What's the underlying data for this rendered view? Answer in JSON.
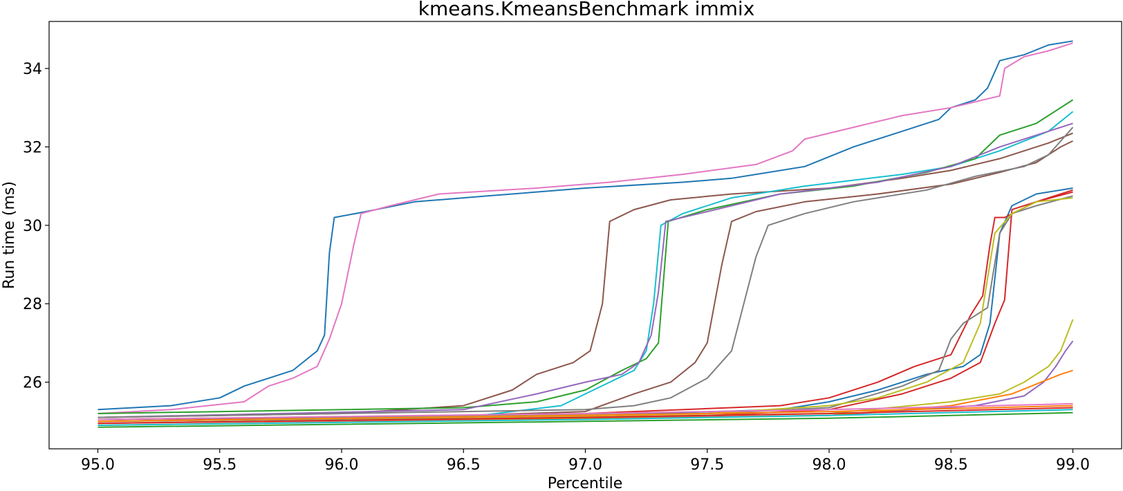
{
  "chart_data": {
    "type": "line",
    "title": "kmeans.KmeansBenchmark immix",
    "xlabel": "Percentile",
    "ylabel": "Run time (ms)",
    "xlim": [
      94.8,
      99.2
    ],
    "ylim": [
      24.3,
      35.2
    ],
    "xticks": [
      "95.0",
      "95.5",
      "96.0",
      "96.5",
      "97.0",
      "97.5",
      "98.0",
      "98.5",
      "99.0"
    ],
    "yticks": [
      "26",
      "28",
      "30",
      "32",
      "34"
    ],
    "grid": false,
    "legend": "none",
    "series": [
      {
        "color": "#1f77b4",
        "points": [
          [
            95.0,
            25.3
          ],
          [
            95.3,
            25.4
          ],
          [
            95.5,
            25.6
          ],
          [
            95.6,
            25.9
          ],
          [
            95.8,
            26.3
          ],
          [
            95.9,
            26.8
          ],
          [
            95.93,
            27.2
          ],
          [
            95.95,
            29.3
          ],
          [
            95.97,
            30.2
          ],
          [
            96.1,
            30.35
          ],
          [
            96.3,
            30.6
          ],
          [
            96.6,
            30.75
          ],
          [
            97.0,
            30.95
          ],
          [
            97.4,
            31.1
          ],
          [
            97.6,
            31.2
          ],
          [
            97.9,
            31.5
          ],
          [
            98.1,
            32.0
          ],
          [
            98.3,
            32.4
          ],
          [
            98.45,
            32.7
          ],
          [
            98.5,
            33.0
          ],
          [
            98.6,
            33.2
          ],
          [
            98.65,
            33.5
          ],
          [
            98.7,
            34.2
          ],
          [
            98.8,
            34.35
          ],
          [
            98.9,
            34.6
          ],
          [
            99.0,
            34.7
          ]
        ]
      },
      {
        "color": "#e377c2",
        "points": [
          [
            95.0,
            25.2
          ],
          [
            95.3,
            25.3
          ],
          [
            95.6,
            25.5
          ],
          [
            95.7,
            25.9
          ],
          [
            95.8,
            26.1
          ],
          [
            95.9,
            26.4
          ],
          [
            95.95,
            27.1
          ],
          [
            96.0,
            28.0
          ],
          [
            96.05,
            29.5
          ],
          [
            96.08,
            30.3
          ],
          [
            96.2,
            30.5
          ],
          [
            96.4,
            30.8
          ],
          [
            96.8,
            30.95
          ],
          [
            97.1,
            31.1
          ],
          [
            97.4,
            31.3
          ],
          [
            97.7,
            31.55
          ],
          [
            97.85,
            31.9
          ],
          [
            97.9,
            32.2
          ],
          [
            98.1,
            32.5
          ],
          [
            98.3,
            32.8
          ],
          [
            98.5,
            33.0
          ],
          [
            98.7,
            33.3
          ],
          [
            98.72,
            34.0
          ],
          [
            98.8,
            34.3
          ],
          [
            98.9,
            34.45
          ],
          [
            99.0,
            34.65
          ]
        ]
      },
      {
        "color": "#8c564b",
        "points": [
          [
            95.0,
            25.1
          ],
          [
            96.0,
            25.2
          ],
          [
            96.5,
            25.4
          ],
          [
            96.7,
            25.8
          ],
          [
            96.8,
            26.2
          ],
          [
            96.95,
            26.5
          ],
          [
            97.02,
            26.8
          ],
          [
            97.07,
            28.0
          ],
          [
            97.1,
            30.1
          ],
          [
            97.2,
            30.4
          ],
          [
            97.35,
            30.65
          ],
          [
            97.6,
            30.8
          ],
          [
            98.0,
            30.95
          ],
          [
            98.3,
            31.2
          ],
          [
            98.5,
            31.4
          ],
          [
            98.7,
            31.7
          ],
          [
            98.9,
            32.1
          ],
          [
            99.0,
            32.35
          ]
        ]
      },
      {
        "color": "#8c564b",
        "points": [
          [
            95.0,
            25.05
          ],
          [
            96.5,
            25.15
          ],
          [
            97.0,
            25.25
          ],
          [
            97.2,
            25.7
          ],
          [
            97.35,
            26.0
          ],
          [
            97.45,
            26.5
          ],
          [
            97.5,
            27.0
          ],
          [
            97.53,
            28.0
          ],
          [
            97.56,
            29.0
          ],
          [
            97.6,
            30.1
          ],
          [
            97.7,
            30.35
          ],
          [
            97.9,
            30.6
          ],
          [
            98.2,
            30.8
          ],
          [
            98.5,
            31.05
          ],
          [
            98.7,
            31.35
          ],
          [
            98.85,
            31.6
          ],
          [
            98.95,
            32.0
          ],
          [
            99.0,
            32.15
          ]
        ]
      },
      {
        "color": "#17becf",
        "points": [
          [
            95.0,
            25.0
          ],
          [
            96.5,
            25.1
          ],
          [
            96.9,
            25.4
          ],
          [
            97.0,
            25.7
          ],
          [
            97.1,
            26.0
          ],
          [
            97.2,
            26.3
          ],
          [
            97.25,
            26.8
          ],
          [
            97.28,
            28.0
          ],
          [
            97.31,
            30.0
          ],
          [
            97.4,
            30.3
          ],
          [
            97.6,
            30.7
          ],
          [
            97.9,
            31.0
          ],
          [
            98.3,
            31.3
          ],
          [
            98.5,
            31.5
          ],
          [
            98.7,
            31.9
          ],
          [
            98.9,
            32.4
          ],
          [
            99.0,
            32.9
          ]
        ]
      },
      {
        "color": "#2ca02c",
        "points": [
          [
            95.0,
            25.2
          ],
          [
            96.5,
            25.35
          ],
          [
            96.8,
            25.5
          ],
          [
            97.0,
            25.8
          ],
          [
            97.15,
            26.3
          ],
          [
            97.25,
            26.6
          ],
          [
            97.3,
            27.0
          ],
          [
            97.34,
            30.1
          ],
          [
            97.5,
            30.4
          ],
          [
            97.8,
            30.8
          ],
          [
            98.1,
            31.0
          ],
          [
            98.4,
            31.35
          ],
          [
            98.6,
            31.7
          ],
          [
            98.7,
            32.3
          ],
          [
            98.85,
            32.6
          ],
          [
            99.0,
            33.2
          ]
        ]
      },
      {
        "color": "#9467bd",
        "points": [
          [
            95.0,
            25.1
          ],
          [
            96.5,
            25.3
          ],
          [
            96.8,
            25.7
          ],
          [
            97.0,
            26.0
          ],
          [
            97.15,
            26.2
          ],
          [
            97.22,
            26.5
          ],
          [
            97.27,
            27.2
          ],
          [
            97.3,
            28.3
          ],
          [
            97.33,
            30.1
          ],
          [
            97.5,
            30.35
          ],
          [
            97.8,
            30.8
          ],
          [
            98.2,
            31.1
          ],
          [
            98.5,
            31.5
          ],
          [
            98.7,
            32.0
          ],
          [
            98.9,
            32.4
          ],
          [
            99.0,
            32.6
          ]
        ]
      },
      {
        "color": "#7f7f7f",
        "points": [
          [
            95.0,
            25.1
          ],
          [
            97.0,
            25.3
          ],
          [
            97.2,
            25.4
          ],
          [
            97.35,
            25.6
          ],
          [
            97.5,
            26.1
          ],
          [
            97.6,
            26.8
          ],
          [
            97.65,
            28.0
          ],
          [
            97.7,
            29.2
          ],
          [
            97.75,
            30.0
          ],
          [
            97.9,
            30.3
          ],
          [
            98.1,
            30.6
          ],
          [
            98.4,
            30.9
          ],
          [
            98.6,
            31.25
          ],
          [
            98.8,
            31.5
          ],
          [
            98.9,
            31.8
          ],
          [
            99.0,
            32.5
          ]
        ]
      },
      {
        "color": "#1f77b4",
        "points": [
          [
            95.0,
            25.0
          ],
          [
            97.0,
            25.15
          ],
          [
            97.8,
            25.3
          ],
          [
            98.0,
            25.5
          ],
          [
            98.2,
            25.8
          ],
          [
            98.4,
            26.2
          ],
          [
            98.55,
            26.4
          ],
          [
            98.62,
            26.7
          ],
          [
            98.66,
            27.5
          ],
          [
            98.7,
            29.8
          ],
          [
            98.75,
            30.5
          ],
          [
            98.85,
            30.8
          ],
          [
            99.0,
            30.95
          ]
        ]
      },
      {
        "color": "#d62728",
        "points": [
          [
            95.0,
            25.0
          ],
          [
            97.0,
            25.2
          ],
          [
            97.8,
            25.4
          ],
          [
            98.0,
            25.6
          ],
          [
            98.2,
            26.0
          ],
          [
            98.35,
            26.4
          ],
          [
            98.5,
            26.7
          ],
          [
            98.58,
            27.7
          ],
          [
            98.63,
            28.2
          ],
          [
            98.66,
            29.5
          ],
          [
            98.68,
            30.2
          ],
          [
            98.72,
            30.2
          ],
          [
            98.85,
            30.6
          ],
          [
            99.0,
            30.9
          ]
        ]
      },
      {
        "color": "#d62728",
        "points": [
          [
            95.0,
            24.95
          ],
          [
            97.5,
            25.15
          ],
          [
            98.0,
            25.3
          ],
          [
            98.3,
            25.7
          ],
          [
            98.5,
            26.1
          ],
          [
            98.62,
            26.5
          ],
          [
            98.68,
            27.5
          ],
          [
            98.72,
            28.1
          ],
          [
            98.75,
            30.4
          ],
          [
            98.85,
            30.6
          ],
          [
            99.0,
            30.85
          ]
        ]
      },
      {
        "color": "#7f7f7f",
        "points": [
          [
            95.0,
            25.05
          ],
          [
            97.5,
            25.2
          ],
          [
            98.0,
            25.35
          ],
          [
            98.3,
            25.9
          ],
          [
            98.45,
            26.3
          ],
          [
            98.5,
            27.1
          ],
          [
            98.55,
            27.5
          ],
          [
            98.65,
            27.9
          ],
          [
            98.7,
            29.8
          ],
          [
            98.75,
            30.3
          ],
          [
            98.85,
            30.5
          ],
          [
            99.0,
            30.75
          ]
        ]
      },
      {
        "color": "#bcbd22",
        "points": [
          [
            95.0,
            25.0
          ],
          [
            97.5,
            25.2
          ],
          [
            98.0,
            25.4
          ],
          [
            98.2,
            25.6
          ],
          [
            98.4,
            26.0
          ],
          [
            98.55,
            26.5
          ],
          [
            98.62,
            27.5
          ],
          [
            98.68,
            29.8
          ],
          [
            98.75,
            30.3
          ],
          [
            98.85,
            30.6
          ],
          [
            99.0,
            30.7
          ]
        ]
      },
      {
        "color": "#bcbd22",
        "points": [
          [
            95.0,
            24.95
          ],
          [
            98.0,
            25.2
          ],
          [
            98.5,
            25.5
          ],
          [
            98.7,
            25.7
          ],
          [
            98.8,
            26.0
          ],
          [
            98.9,
            26.4
          ],
          [
            98.95,
            26.8
          ],
          [
            99.0,
            27.6
          ]
        ]
      },
      {
        "color": "#9467bd",
        "points": [
          [
            95.0,
            24.95
          ],
          [
            98.0,
            25.15
          ],
          [
            98.6,
            25.4
          ],
          [
            98.8,
            25.65
          ],
          [
            98.88,
            26.0
          ],
          [
            98.93,
            26.4
          ],
          [
            98.97,
            26.8
          ],
          [
            99.0,
            27.05
          ]
        ]
      },
      {
        "color": "#ff7f0e",
        "points": [
          [
            95.0,
            24.9
          ],
          [
            98.0,
            25.15
          ],
          [
            98.5,
            25.4
          ],
          [
            98.75,
            25.7
          ],
          [
            98.85,
            25.95
          ],
          [
            98.95,
            26.2
          ],
          [
            99.0,
            26.3
          ]
        ]
      },
      {
        "color": "#e377c2",
        "points": [
          [
            95.0,
            25.05
          ],
          [
            97.0,
            25.2
          ],
          [
            98.0,
            25.3
          ],
          [
            99.0,
            25.45
          ]
        ]
      },
      {
        "color": "#ff7f0e",
        "points": [
          [
            95.0,
            25.0
          ],
          [
            97.0,
            25.15
          ],
          [
            98.0,
            25.25
          ],
          [
            99.0,
            25.4
          ]
        ]
      },
      {
        "color": "#d62728",
        "points": [
          [
            95.0,
            24.95
          ],
          [
            97.0,
            25.1
          ],
          [
            98.0,
            25.2
          ],
          [
            99.0,
            25.35
          ]
        ]
      },
      {
        "color": "#17becf",
        "points": [
          [
            95.0,
            24.9
          ],
          [
            97.0,
            25.05
          ],
          [
            98.0,
            25.15
          ],
          [
            99.0,
            25.3
          ]
        ]
      },
      {
        "color": "#2ca02c",
        "points": [
          [
            95.0,
            24.85
          ],
          [
            97.0,
            25.0
          ],
          [
            98.0,
            25.08
          ],
          [
            99.0,
            25.22
          ]
        ]
      }
    ]
  }
}
